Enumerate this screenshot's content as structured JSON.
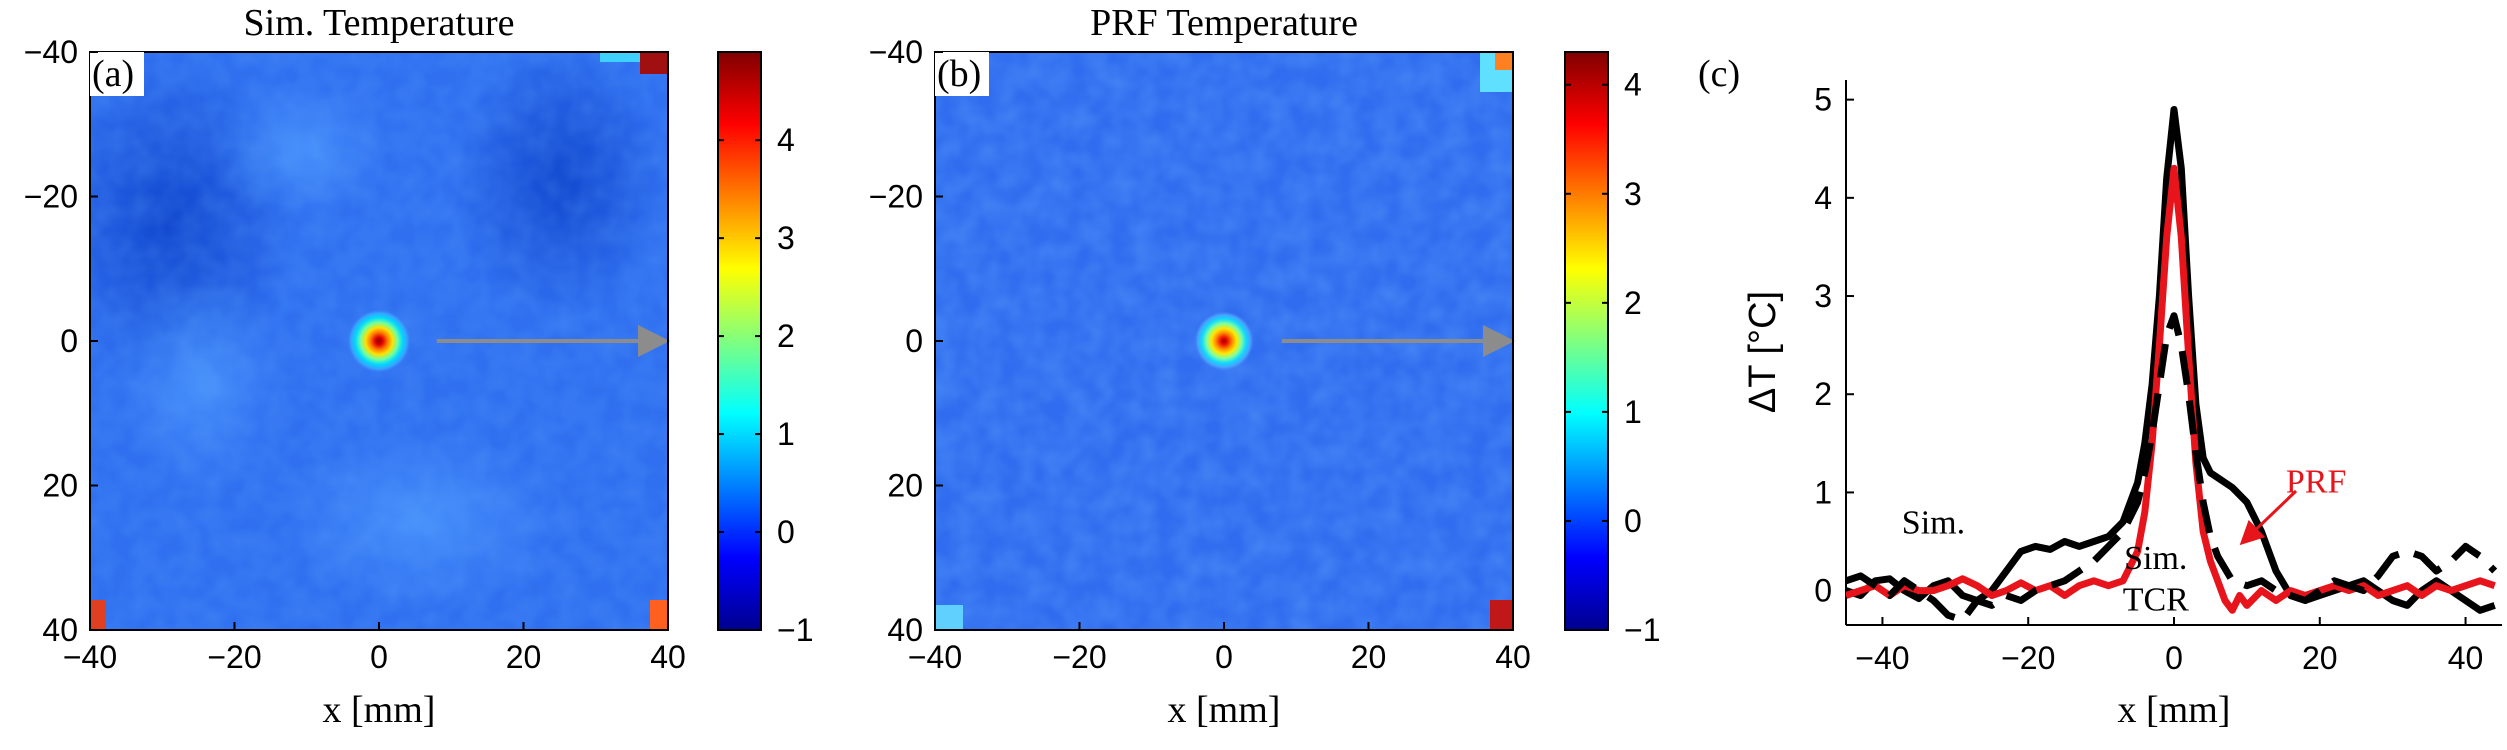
{
  "chart_data": [
    {
      "type": "heatmap",
      "panel_label": "(a)",
      "title": "Sim. Temperature",
      "xlabel": "x [mm]",
      "ylabel": "",
      "xlim": [
        -40,
        40
      ],
      "ylim": [
        -40,
        40
      ],
      "y_reversed": true,
      "xticks": [
        -40,
        -20,
        0,
        20,
        40
      ],
      "yticks": [
        -40,
        -20,
        0,
        20,
        40
      ],
      "colorbar": {
        "range": [
          -1.0,
          4.9
        ],
        "ticks": [
          -1,
          0,
          1,
          2,
          3,
          4
        ],
        "colormap": "jet"
      },
      "background_value": 0.2,
      "hotspot": {
        "x": 0,
        "y": 0,
        "peak": 4.9
      },
      "arrow": {
        "from_x": 8,
        "to_x": 40,
        "y": 0,
        "color": "#8c8c8c"
      }
    },
    {
      "type": "heatmap",
      "panel_label": "(b)",
      "title": "PRF Temperature",
      "xlabel": "x [mm]",
      "ylabel": "",
      "xlim": [
        -40,
        40
      ],
      "ylim": [
        -40,
        40
      ],
      "y_reversed": true,
      "xticks": [
        -40,
        -20,
        0,
        20,
        40
      ],
      "yticks": [
        -40,
        -20,
        0,
        20,
        40
      ],
      "colorbar": {
        "range": [
          -1.0,
          4.3
        ],
        "ticks": [
          -1,
          0,
          1,
          2,
          3,
          4
        ],
        "colormap": "jet"
      },
      "background_value": 0.1,
      "hotspot": {
        "x": 0,
        "y": 0,
        "peak": 4.3
      },
      "arrow": {
        "from_x": 8,
        "to_x": 40,
        "y": 0,
        "color": "#8c8c8c"
      }
    },
    {
      "type": "line",
      "panel_label": "(c)",
      "xlabel": "x [mm]",
      "ylabel": "ΔT  [°C]",
      "xlim": [
        -45,
        45
      ],
      "ylim": [
        -0.35,
        5.2
      ],
      "xticks": [
        -40,
        -20,
        0,
        20,
        40
      ],
      "yticks": [
        0,
        1,
        2,
        3,
        4,
        5
      ],
      "annotations": [
        {
          "text": "Sim.",
          "x": -33,
          "y": 0.58,
          "color": "#000000"
        },
        {
          "text": "Sim.",
          "x": -2.5,
          "y": 0.22,
          "color": "#000000"
        },
        {
          "text": "TCR",
          "x": -2.5,
          "y": -0.2,
          "color": "#000000"
        },
        {
          "text": "PRF",
          "x": 19.5,
          "y": 1.0,
          "color": "#e8141c"
        }
      ],
      "series": [
        {
          "color": "#000000",
          "style": "solid",
          "x": [
            -45,
            -43,
            -41,
            -39,
            -37,
            -35,
            -33,
            -31,
            -29,
            -27,
            -25,
            -23,
            -21,
            -19,
            -17,
            -15,
            -13,
            -11,
            -9,
            -7,
            -5,
            -4,
            -3,
            -2,
            -1,
            0,
            1,
            2,
            3,
            4,
            5,
            6,
            8,
            10,
            12,
            14,
            16,
            18,
            20,
            22,
            24,
            26,
            28,
            30,
            32,
            34,
            36,
            38,
            40,
            42,
            44
          ],
          "values": [
            0.0,
            -0.05,
            0.1,
            0.12,
            0.0,
            -0.08,
            0.05,
            0.1,
            -0.05,
            -0.1,
            0.0,
            0.2,
            0.4,
            0.45,
            0.42,
            0.5,
            0.45,
            0.5,
            0.55,
            0.7,
            1.1,
            1.5,
            2.1,
            3.0,
            4.2,
            4.9,
            4.3,
            3.0,
            1.9,
            1.35,
            1.2,
            1.15,
            1.05,
            0.9,
            0.6,
            0.2,
            -0.05,
            -0.1,
            -0.05,
            0.0,
            0.05,
            0.1,
            0.0,
            -0.1,
            -0.15,
            0.0,
            0.1,
            0.0,
            -0.1,
            -0.2,
            -0.15
          ]
        },
        {
          "color": "#e8141c",
          "style": "solid",
          "x": [
            -45,
            -43,
            -41,
            -39,
            -37,
            -35,
            -33,
            -31,
            -29,
            -27,
            -25,
            -23,
            -21,
            -19,
            -17,
            -15,
            -13,
            -11,
            -9,
            -7,
            -5,
            -4,
            -3,
            -2,
            -1,
            0,
            1,
            2,
            3,
            4,
            5,
            6,
            7,
            8,
            9,
            10,
            12,
            14,
            16,
            18,
            20,
            22,
            24,
            26,
            28,
            30,
            32,
            34,
            36,
            38,
            40,
            42,
            44
          ],
          "values": [
            -0.05,
            0.0,
            0.05,
            -0.05,
            0.05,
            0.0,
            0.0,
            0.05,
            0.12,
            0.05,
            -0.05,
            0.0,
            0.08,
            0.0,
            0.05,
            -0.05,
            0.05,
            0.1,
            0.05,
            0.1,
            0.4,
            0.8,
            1.5,
            2.5,
            3.6,
            4.3,
            3.6,
            2.4,
            1.3,
            0.6,
            0.3,
            0.1,
            -0.1,
            -0.2,
            -0.05,
            -0.15,
            0.0,
            -0.1,
            0.0,
            -0.05,
            0.0,
            0.05,
            0.0,
            0.05,
            -0.05,
            0.0,
            0.05,
            -0.05,
            0.05,
            0.0,
            0.05,
            0.1,
            0.05
          ]
        },
        {
          "color": "#000000",
          "style": "dashed",
          "x": [
            -45,
            -43,
            -41,
            -39,
            -37,
            -35,
            -33,
            -31,
            -29,
            -27,
            -25,
            -23,
            -21,
            -19,
            -17,
            -15,
            -13,
            -11,
            -9,
            -7,
            -5,
            -4,
            -3,
            -2,
            -1,
            0,
            1,
            2,
            3,
            4,
            5,
            6,
            8,
            10,
            12,
            14,
            16,
            18,
            20,
            22,
            24,
            26,
            28,
            30,
            32,
            34,
            36,
            38,
            40,
            42,
            44
          ],
          "values": [
            0.1,
            0.15,
            0.05,
            -0.05,
            0.1,
            0.0,
            -0.1,
            -0.25,
            -0.3,
            -0.1,
            -0.15,
            -0.05,
            -0.1,
            0.0,
            0.05,
            0.1,
            0.2,
            0.3,
            0.45,
            0.6,
            0.9,
            1.2,
            1.6,
            2.1,
            2.6,
            2.8,
            2.5,
            2.0,
            1.4,
            0.9,
            0.55,
            0.35,
            0.1,
            0.05,
            0.1,
            0.0,
            -0.05,
            -0.1,
            0.0,
            0.1,
            0.05,
            0.0,
            0.15,
            0.35,
            0.4,
            0.35,
            0.2,
            0.3,
            0.45,
            0.35,
            0.2
          ]
        }
      ]
    }
  ]
}
